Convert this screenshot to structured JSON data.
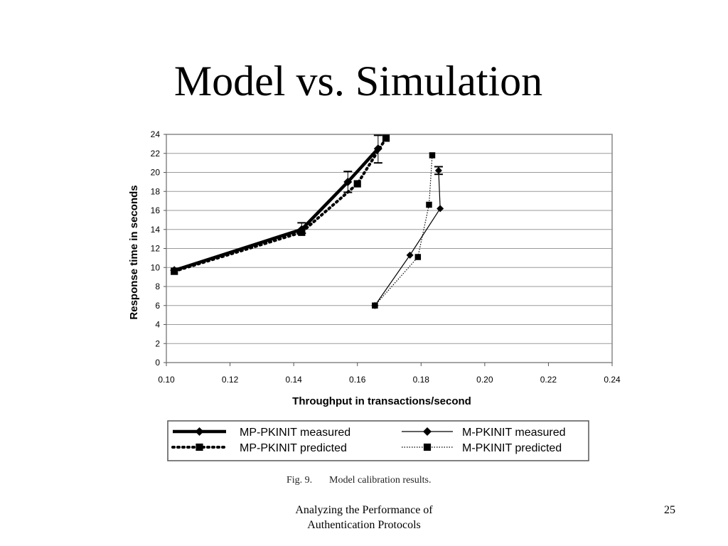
{
  "slide": {
    "title": "Model vs. Simulation",
    "footer_line1": "Analyzing the Performance of",
    "footer_line2": "Authentication Protocols",
    "page_number": "25",
    "caption_fig": "Fig. 9.",
    "caption_text": "Model calibration results."
  },
  "chart_data": {
    "type": "line",
    "title": "",
    "xlabel": "Throughput in transactions/second",
    "ylabel": "Response time in seconds",
    "xlim": [
      0.1,
      0.24
    ],
    "ylim": [
      0,
      24
    ],
    "x_ticks": [
      "0.10",
      "0.12",
      "0.14",
      "0.16",
      "0.18",
      "0.20",
      "0.22",
      "0.24"
    ],
    "y_ticks": [
      "0",
      "2",
      "4",
      "6",
      "8",
      "10",
      "12",
      "14",
      "16",
      "18",
      "20",
      "22",
      "24"
    ],
    "grid": "horizontal",
    "legend_position": "bottom",
    "series": [
      {
        "name": "MP-PKINIT measured",
        "style": "thick-solid",
        "marker": "diamond",
        "color": "#000000",
        "points": [
          [
            0.1025,
            9.7
          ],
          [
            0.1425,
            14.0
          ],
          [
            0.157,
            19.0
          ],
          [
            0.1665,
            22.5
          ]
        ],
        "error_bars": [
          [
            0.1425,
            13.6,
            14.7
          ],
          [
            0.157,
            17.9,
            20.1
          ],
          [
            0.1665,
            21.0,
            23.9
          ]
        ]
      },
      {
        "name": "MP-PKINIT predicted",
        "style": "thick-dotted",
        "marker": "square",
        "color": "#000000",
        "points": [
          [
            0.1025,
            9.6
          ],
          [
            0.1425,
            13.7
          ],
          [
            0.16,
            18.8
          ],
          [
            0.169,
            23.6
          ]
        ]
      },
      {
        "name": "M-PKINIT measured",
        "style": "thin-solid",
        "marker": "diamond",
        "color": "#000000",
        "points": [
          [
            0.1655,
            6.0
          ],
          [
            0.1765,
            11.3
          ],
          [
            0.186,
            16.2
          ],
          [
            0.1855,
            20.2
          ]
        ],
        "error_bars": [
          [
            0.1855,
            19.8,
            20.6
          ]
        ]
      },
      {
        "name": "M-PKINIT predicted",
        "style": "thin-dotted",
        "marker": "square",
        "color": "#000000",
        "points": [
          [
            0.1655,
            6.0
          ],
          [
            0.179,
            11.1
          ],
          [
            0.1825,
            16.6
          ],
          [
            0.1835,
            21.8
          ]
        ]
      }
    ]
  }
}
